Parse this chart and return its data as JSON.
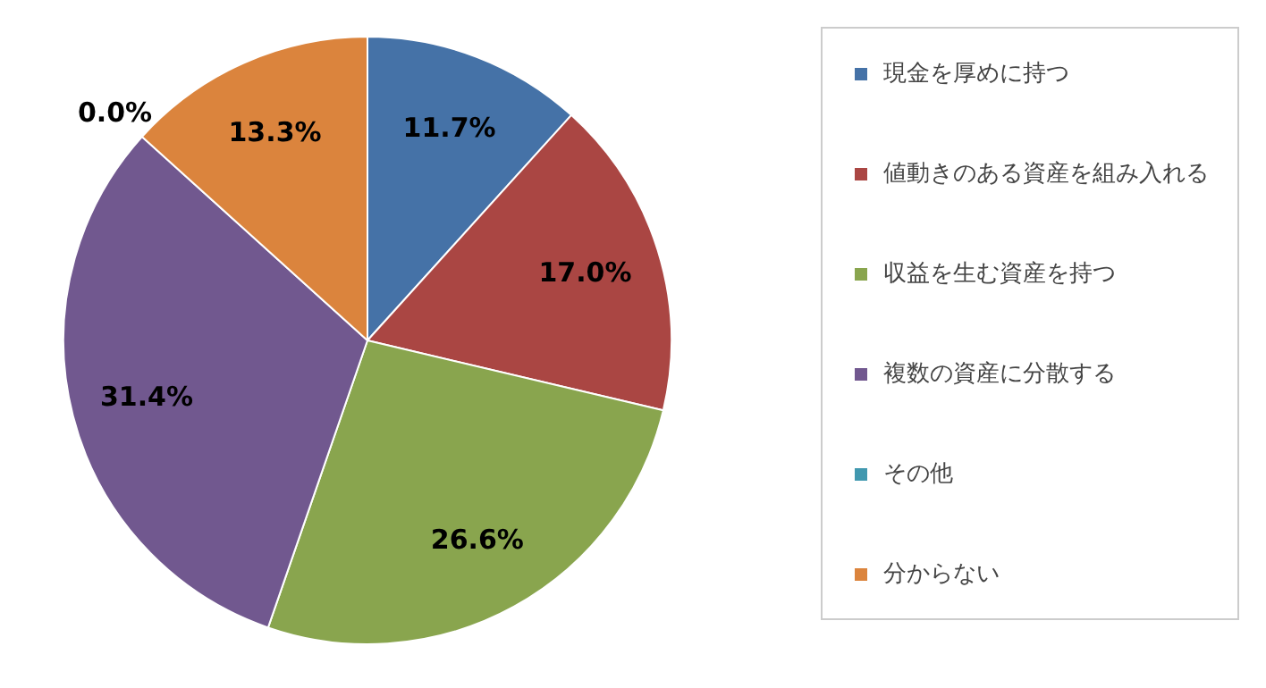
{
  "chart_data": {
    "type": "pie",
    "categories": [
      "現金を厚めに持つ",
      "値動きのある資産を組み入れる",
      "収益を生む資産を持つ",
      "複数の資産に分散する",
      "その他",
      "分からない"
    ],
    "values": [
      11.7,
      17.0,
      26.6,
      31.4,
      0.0,
      13.3
    ],
    "colors": [
      "#4572a7",
      "#aa4643",
      "#89a54e",
      "#71588f",
      "#4198af",
      "#db843d"
    ],
    "value_labels": [
      "11.7%",
      "17.0%",
      "26.6%",
      "31.4%",
      "0.0%",
      "13.3%"
    ],
    "legend": "right"
  }
}
